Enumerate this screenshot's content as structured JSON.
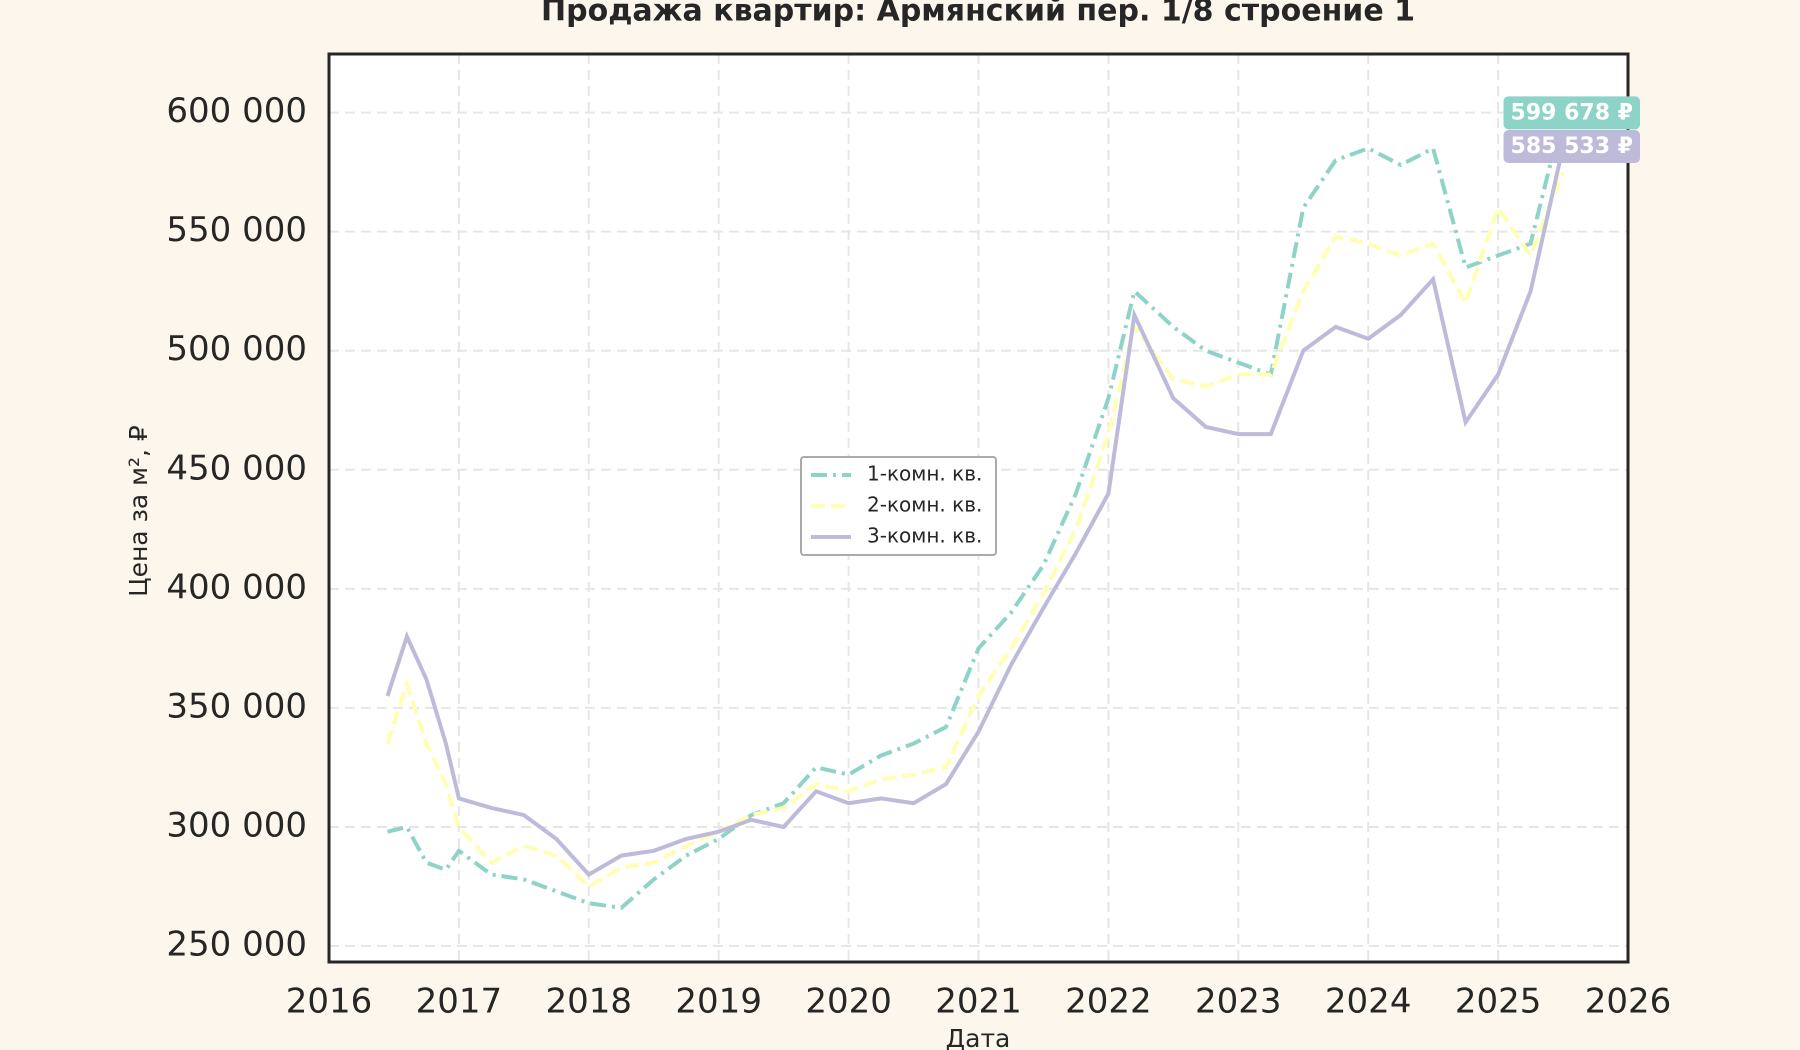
{
  "chart_data": {
    "type": "line",
    "title": "Продажа квартир: Армянский пер. 1/8 строение 1",
    "x_label": "Дата",
    "y_label": "Цена за м², ₽",
    "x": [
      2016.45,
      2016.6,
      2016.75,
      2016.9,
      2017.0,
      2017.25,
      2017.5,
      2017.75,
      2018.0,
      2018.25,
      2018.5,
      2018.75,
      2019.0,
      2019.25,
      2019.5,
      2019.75,
      2020.0,
      2020.25,
      2020.5,
      2020.75,
      2021.0,
      2021.25,
      2021.5,
      2021.75,
      2022.0,
      2022.2,
      2022.5,
      2022.75,
      2023.0,
      2023.25,
      2023.5,
      2023.75,
      2024.0,
      2024.25,
      2024.5,
      2024.75,
      2025.0,
      2025.25,
      2025.5
    ],
    "series": [
      {
        "name": "1-комн. кв.",
        "color": "#8dd3c7",
        "dash": "dashdot",
        "values": [
          298000,
          300000,
          285000,
          282000,
          290000,
          280000,
          278000,
          273000,
          268000,
          266000,
          278000,
          288000,
          295000,
          305000,
          310000,
          325000,
          322000,
          330000,
          335000,
          342000,
          375000,
          390000,
          410000,
          440000,
          480000,
          525000,
          510000,
          500000,
          495000,
          490000,
          560000,
          580000,
          585000,
          578000,
          585000,
          535000,
          540000,
          545000,
          599678
        ]
      },
      {
        "name": "2-комн. кв.",
        "color": "#ffffb3",
        "dash": "dashed",
        "values": [
          335000,
          360000,
          335000,
          318000,
          300000,
          285000,
          292000,
          288000,
          275000,
          283000,
          285000,
          292000,
          298000,
          305000,
          308000,
          318000,
          315000,
          320000,
          322000,
          325000,
          355000,
          375000,
          398000,
          425000,
          465000,
          510000,
          488000,
          485000,
          490000,
          490000,
          525000,
          548000,
          545000,
          540000,
          545000,
          520000,
          560000,
          540000,
          575000
        ]
      },
      {
        "name": "3-комн. кв.",
        "color": "#bebada",
        "dash": "solid",
        "values": [
          355000,
          380000,
          362000,
          335000,
          312000,
          308000,
          305000,
          295000,
          280000,
          288000,
          290000,
          295000,
          298000,
          303000,
          300000,
          315000,
          310000,
          312000,
          310000,
          318000,
          340000,
          368000,
          392000,
          415000,
          440000,
          515000,
          480000,
          468000,
          465000,
          465000,
          500000,
          510000,
          505000,
          515000,
          530000,
          470000,
          490000,
          525000,
          585533
        ]
      }
    ],
    "annotations": [
      {
        "series": 0,
        "value": 599678,
        "label": "599 678 ₽"
      },
      {
        "series": 2,
        "value": 585533,
        "label": "585 533 ₽"
      }
    ],
    "xlim": [
      2016,
      2026
    ],
    "xticks": [
      2016,
      2017,
      2018,
      2019,
      2020,
      2021,
      2022,
      2023,
      2024,
      2025,
      2026
    ],
    "ylim": [
      243300,
      624600
    ],
    "yticks": [
      {
        "value": 250000,
        "label": "250 000"
      },
      {
        "value": 300000,
        "label": "300 000"
      },
      {
        "value": 350000,
        "label": "350 000"
      },
      {
        "value": 400000,
        "label": "400 000"
      },
      {
        "value": 450000,
        "label": "450 000"
      },
      {
        "value": 500000,
        "label": "500 000"
      },
      {
        "value": 550000,
        "label": "550 000"
      },
      {
        "value": 600000,
        "label": "600 000"
      }
    ],
    "grid": true,
    "legend": "center"
  }
}
